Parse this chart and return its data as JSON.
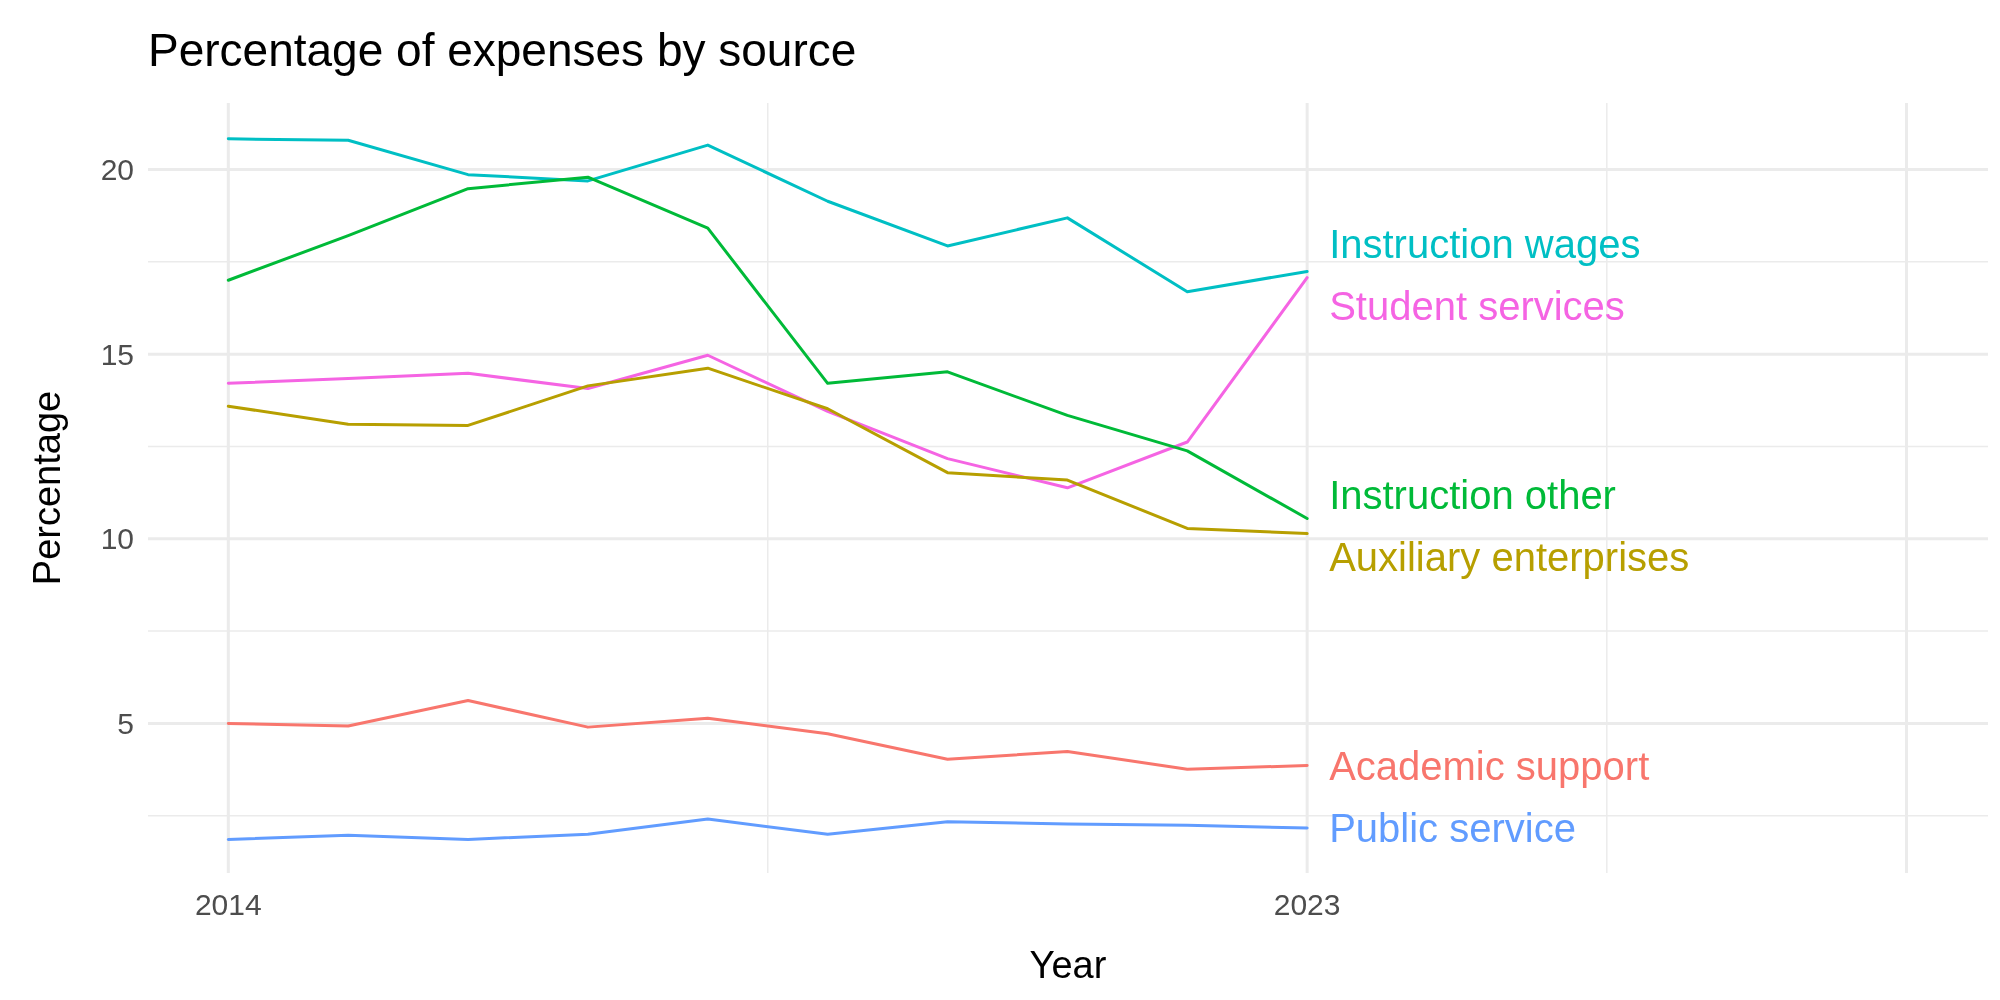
{
  "chart_data": {
    "type": "line",
    "title": "Percentage of expenses by source",
    "xlabel": "Year",
    "ylabel": "Percentage",
    "x": [
      2014,
      2015,
      2016,
      2017,
      2018,
      2019,
      2020,
      2021,
      2022,
      2023
    ],
    "xlim": [
      2013.33,
      2028.68
    ],
    "xticks": [
      2014,
      {
        "value": 2018.5,
        "label": null
      },
      2023,
      {
        "value": 2025.5,
        "label": null
      },
      {
        "value": 2028,
        "label": null
      }
    ],
    "ylim": [
      0.95,
      21.8
    ],
    "yticks": [
      {
        "value": 2.5,
        "label": null
      },
      5,
      {
        "value": 7.5,
        "label": null
      },
      10,
      {
        "value": 12.5,
        "label": null
      },
      15,
      {
        "value": 17.5,
        "label": null
      },
      20
    ],
    "grid": true,
    "line_style": "solid",
    "series": [
      {
        "name": "Instruction wages",
        "color": "#00bfc4",
        "values": [
          20.83,
          20.79,
          19.86,
          19.69,
          20.66,
          19.14,
          17.93,
          18.69,
          16.69,
          17.24
        ]
      },
      {
        "name": "Student services",
        "color": "#f564e3",
        "values": [
          14.21,
          14.34,
          14.48,
          14.07,
          14.97,
          13.45,
          12.17,
          11.38,
          12.62,
          17.07
        ]
      },
      {
        "name": "Instruction other",
        "color": "#00ba38",
        "values": [
          17.0,
          18.21,
          19.48,
          19.79,
          18.41,
          14.21,
          14.52,
          13.34,
          12.38,
          10.55
        ]
      },
      {
        "name": "Auxiliary enterprises",
        "color": "#b79f00",
        "values": [
          13.59,
          13.1,
          13.07,
          14.14,
          14.62,
          13.52,
          11.79,
          11.59,
          10.28,
          10.14
        ]
      },
      {
        "name": "Academic support",
        "color": "#f8766d",
        "values": [
          5.0,
          4.93,
          5.62,
          4.9,
          5.14,
          4.72,
          4.03,
          4.24,
          3.76,
          3.86
        ]
      },
      {
        "name": "Public service",
        "color": "#619cff",
        "values": [
          1.86,
          1.97,
          1.86,
          2.0,
          2.41,
          2.0,
          2.34,
          2.28,
          2.24,
          2.17
        ]
      }
    ]
  }
}
